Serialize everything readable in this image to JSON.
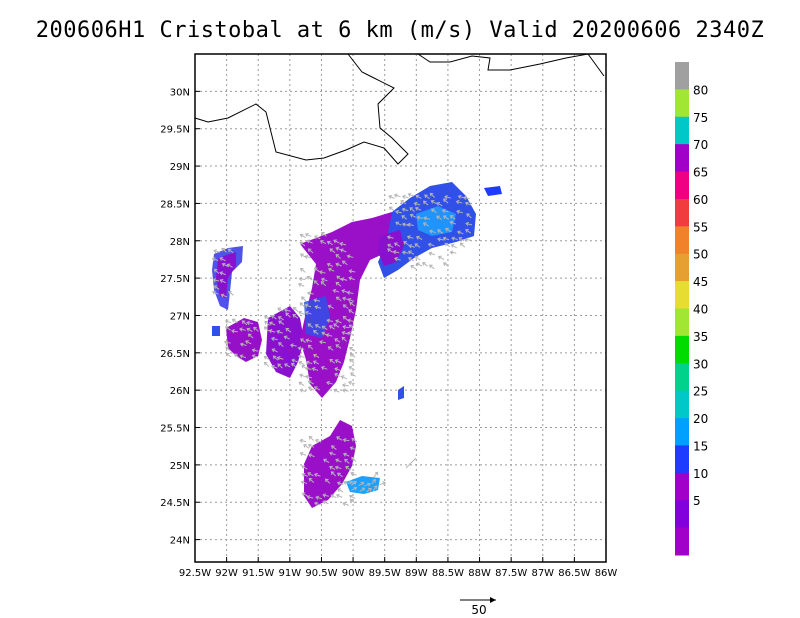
{
  "title": "200606H1 Cristobal at 6 km (m/s) Valid 20200606 2340Z",
  "map": {
    "lon_ticks": [
      "92.5W",
      "92W",
      "91.5W",
      "91W",
      "90.5W",
      "90W",
      "89.5W",
      "89W",
      "88.5W",
      "88W",
      "87.5W",
      "87W",
      "86.5W",
      "86W"
    ],
    "lat_ticks": [
      "30N",
      "29.5N",
      "29N",
      "28.5N",
      "28N",
      "27.5N",
      "27N",
      "26.5N",
      "26N",
      "25.5N",
      "25N",
      "24.5N",
      "24N"
    ],
    "lon_range": [
      -92.5,
      -86.0
    ],
    "lat_range": [
      23.7,
      30.5
    ],
    "grid": true,
    "coastline_color": "#000000"
  },
  "legend": {
    "labels": [
      "80",
      "75",
      "70",
      "65",
      "60",
      "55",
      "50",
      "45",
      "40",
      "35",
      "30",
      "25",
      "20",
      "15",
      "10",
      "5"
    ],
    "colors": [
      "#a0a0a0",
      "#a0e632",
      "#00c8c8",
      "#a000c8",
      "#f00082",
      "#f03c3c",
      "#f0822c",
      "#e6a032",
      "#e6dc32",
      "#a0e632",
      "#00dc00",
      "#00d28c",
      "#00c8c8",
      "#00a0ff",
      "#1e3cff",
      "#a000c8",
      "#8200dc",
      "#a000c8"
    ]
  },
  "vector_scale": {
    "label": "50"
  },
  "regions": [
    {
      "name": "left-band",
      "color": "#8a10d0"
    },
    {
      "name": "central-band",
      "color": "#9a10c8"
    },
    {
      "name": "northeast-band",
      "color": "#3050e8"
    },
    {
      "name": "southern-band",
      "color": "#9a10c8"
    }
  ]
}
